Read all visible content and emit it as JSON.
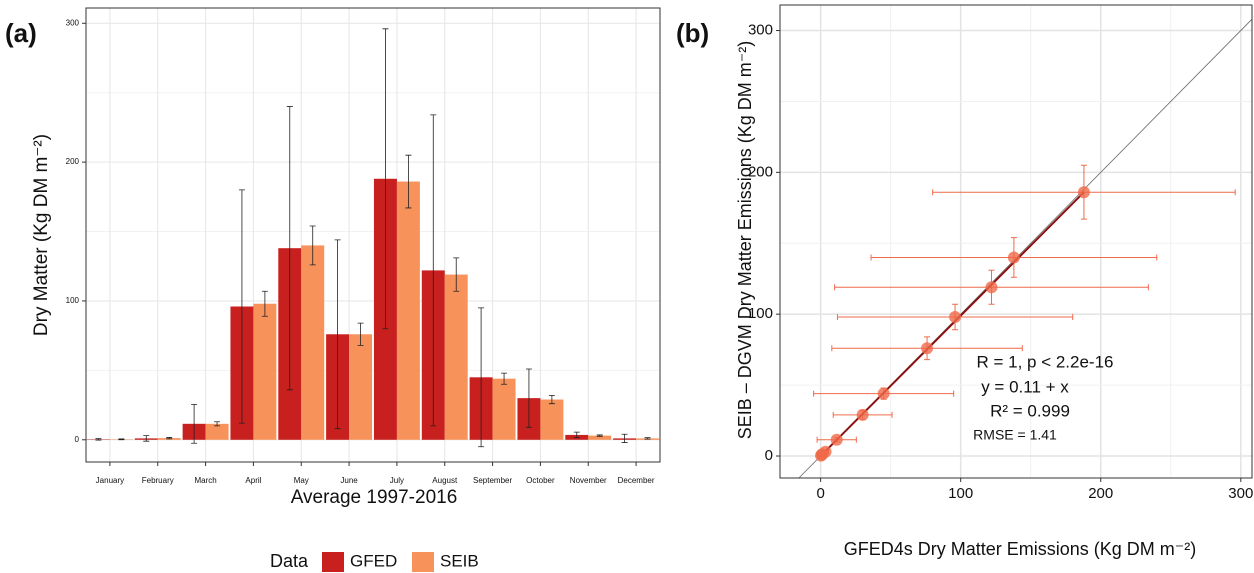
{
  "chart_data": [
    {
      "type": "bar",
      "panel_label": "(a)",
      "xlabel": "Average 1997-2016",
      "ylabel": "Dry Matter (Kg DM m⁻²)",
      "categories": [
        "January",
        "February",
        "March",
        "April",
        "May",
        "June",
        "July",
        "August",
        "September",
        "October",
        "November",
        "December"
      ],
      "series": [
        {
          "name": "GFED",
          "color": "#c8201e",
          "values": [
            0.3,
            1,
            11.5,
            96,
            138,
            76,
            188,
            122,
            45,
            30,
            3.5,
            1
          ],
          "errors": [
            0.5,
            2,
            14,
            84,
            102,
            68,
            108,
            112,
            50,
            21,
            2,
            3
          ]
        },
        {
          "name": "SEIB",
          "color": "#f7925a",
          "values": [
            0.3,
            1.2,
            11.5,
            98,
            140,
            76,
            186,
            119,
            44,
            29,
            3,
            1
          ],
          "errors": [
            0.3,
            0.5,
            1.5,
            9,
            14,
            8,
            19,
            12,
            4,
            3,
            0.5,
            0.5
          ]
        }
      ],
      "ylim": [
        -16,
        311
      ],
      "yticks": [
        0,
        100,
        200,
        300
      ],
      "grid": true,
      "legend": {
        "title": "Data",
        "position": "bottom"
      }
    },
    {
      "type": "scatter",
      "panel_label": "(b)",
      "xlabel": "GFED4s Dry Matter Emissions (Kg  DM m⁻²)",
      "ylabel": "SEIB – DGVM Dry Matter Emissions (Kg  DM m⁻²)",
      "x": [
        0.3,
        1,
        11.5,
        96,
        138,
        76,
        188,
        122,
        45,
        30,
        3.5,
        1
      ],
      "y": [
        0.3,
        1.2,
        11.5,
        98,
        140,
        76,
        186,
        119,
        44,
        29,
        3,
        1
      ],
      "x_errors": [
        0.5,
        2,
        14,
        84,
        102,
        68,
        108,
        112,
        50,
        21,
        2,
        3
      ],
      "y_errors": [
        0.3,
        0.5,
        1.5,
        9,
        14,
        8,
        19,
        12,
        4,
        3,
        0.5,
        0.5
      ],
      "color": "#f06a4a",
      "fit_color": "#8b1010",
      "identity_color": "#666666",
      "annotations": [
        "R = 1, p < 2.2e-16",
        "y = 0.11 + x",
        "R² = 0.999",
        "RMSE = 1.41"
      ],
      "xlim": [
        -29,
        308
      ],
      "ylim": [
        -15.5,
        318
      ],
      "xticks": [
        0,
        100,
        200,
        300
      ],
      "yticks": [
        0,
        100,
        200,
        300
      ],
      "grid": true
    }
  ]
}
